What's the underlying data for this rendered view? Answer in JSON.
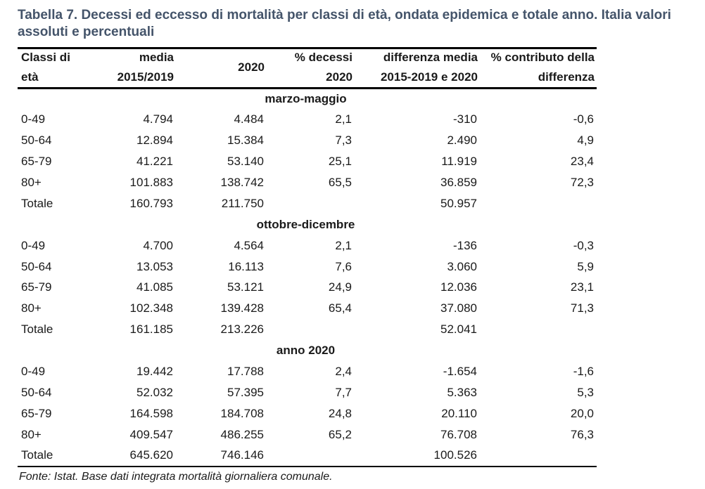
{
  "title": "Tabella 7. Decessi ed eccesso di mortalità per classi di età, ondata epidemica e totale anno. Italia valori assoluti e percentuali",
  "source": "Fonte: Istat. Base dati integrata mortalità giornaliera comunale.",
  "colors": {
    "title_text": "#44546A",
    "body_text": "#1a1a1a",
    "rule": "#000000"
  },
  "table": {
    "columns": [
      {
        "lines": [
          "Classi di",
          "età"
        ]
      },
      {
        "lines": [
          "media",
          "2015/2019"
        ]
      },
      {
        "lines": [
          "2020"
        ]
      },
      {
        "lines": [
          "% decessi",
          "2020"
        ]
      },
      {
        "lines": [
          "differenza media",
          "2015-2019 e 2020"
        ]
      },
      {
        "lines": [
          "% contributo della",
          "differenza"
        ]
      }
    ],
    "sections": [
      {
        "name": "marzo-maggio",
        "rows": [
          [
            "0-49",
            "4.794",
            "4.484",
            "2,1",
            "-310",
            "-0,6"
          ],
          [
            "50-64",
            "12.894",
            "15.384",
            "7,3",
            "2.490",
            "4,9"
          ],
          [
            "65-79",
            "41.221",
            "53.140",
            "25,1",
            "11.919",
            "23,4"
          ],
          [
            "80+",
            "101.883",
            "138.742",
            "65,5",
            "36.859",
            "72,3"
          ],
          [
            "Totale",
            "160.793",
            "211.750",
            "",
            "50.957",
            ""
          ]
        ]
      },
      {
        "name": "ottobre-dicembre",
        "rows": [
          [
            "0-49",
            "4.700",
            "4.564",
            "2,1",
            "-136",
            "-0,3"
          ],
          [
            "50-64",
            "13.053",
            "16.113",
            "7,6",
            "3.060",
            "5,9"
          ],
          [
            "65-79",
            "41.085",
            "53.121",
            "24,9",
            "12.036",
            "23,1"
          ],
          [
            "80+",
            "102.348",
            "139.428",
            "65,4",
            "37.080",
            "71,3"
          ],
          [
            "Totale",
            "161.185",
            "213.226",
            "",
            "52.041",
            ""
          ]
        ]
      },
      {
        "name": "anno 2020",
        "rows": [
          [
            "0-49",
            "19.442",
            "17.788",
            "2,4",
            "-1.654",
            "-1,6"
          ],
          [
            "50-64",
            "52.032",
            "57.395",
            "7,7",
            "5.363",
            "5,3"
          ],
          [
            "65-79",
            "164.598",
            "184.708",
            "24,8",
            "20.110",
            "20,0"
          ],
          [
            "80+",
            "409.547",
            "486.255",
            "65,2",
            "76.708",
            "76,3"
          ],
          [
            "Totale",
            "645.620",
            "746.146",
            "",
            "100.526",
            ""
          ]
        ]
      }
    ]
  }
}
